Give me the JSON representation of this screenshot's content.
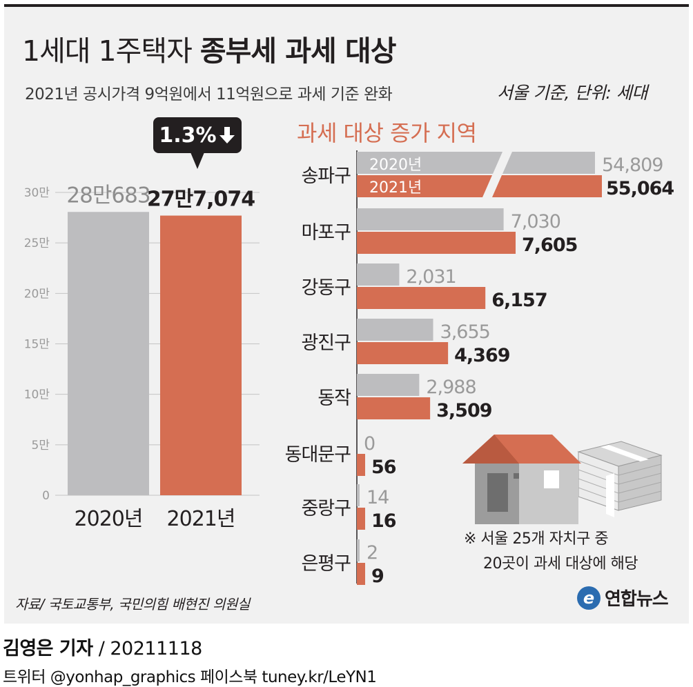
{
  "title": {
    "part1": "1세대 1주택자",
    "part2": "종부세 과세 대상"
  },
  "subtitle": "2021년 공시가격 9억원에서 11억원으로 과세 기준 완화",
  "unit_note": "서울 기준, 단위: 세대",
  "badge": {
    "text": "1.3%",
    "icon": "down-arrow-icon"
  },
  "colors": {
    "gray": "#bdbdbf",
    "orange": "#d56e52",
    "background": "#f1f1f1",
    "dark": "#231f20"
  },
  "chart_data": [
    {
      "type": "bar",
      "categories": [
        "2020년",
        "2021년"
      ],
      "values": [
        280683,
        277074
      ],
      "value_labels": [
        "28만683",
        "27만7,074"
      ],
      "y_ticks": [
        0,
        50000,
        100000,
        150000,
        200000,
        250000,
        300000
      ],
      "y_tick_labels": [
        "0",
        "5만",
        "10만",
        "15만",
        "20만",
        "25만",
        "30만"
      ],
      "ylim": [
        0,
        300000
      ],
      "annotation": "1.3% decrease"
    },
    {
      "type": "bar",
      "orientation": "horizontal",
      "title": "과세 대상 증가 지역",
      "categories": [
        "송파구",
        "마포구",
        "강동구",
        "광진구",
        "동작",
        "동대문구",
        "중랑구",
        "은평구"
      ],
      "series": [
        {
          "name": "2020년",
          "values": [
            54809,
            7030,
            2031,
            3655,
            2988,
            0,
            14,
            2
          ],
          "labels": [
            "54,809",
            "7,030",
            "2,031",
            "3,655",
            "2,988",
            "0",
            "14",
            "2"
          ]
        },
        {
          "name": "2021년",
          "values": [
            55064,
            7605,
            6157,
            4369,
            3509,
            56,
            16,
            9
          ],
          "labels": [
            "55,064",
            "7,605",
            "6,157",
            "4,369",
            "3,509",
            "56",
            "16",
            "9"
          ]
        }
      ],
      "axis_break": "송파구 bars are drawn with a broken axis"
    }
  ],
  "note": {
    "line1": "※ 서울 25개 자치구 중",
    "line2": "20곳이 과세 대상에 해당"
  },
  "source": "자료/ 국토교통부, 국민의힘 배현진 의원실",
  "logo_text": "연합뉴스",
  "reporter": {
    "name": "김영은 기자",
    "date": " / 20211118"
  },
  "social": "트위터 @yonhap_graphics  페이스북 tuney.kr/LeYN1"
}
